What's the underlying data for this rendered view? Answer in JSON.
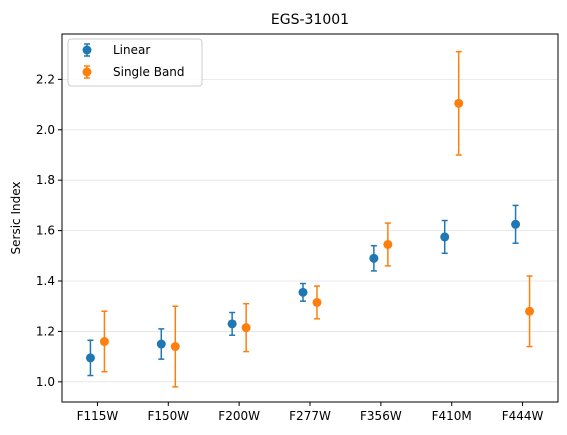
{
  "chart_data": {
    "type": "scatter",
    "title": "EGS-31001",
    "xlabel": "",
    "ylabel": "Sersic Index",
    "categories": [
      "F115W",
      "F150W",
      "F200W",
      "F277W",
      "F356W",
      "F410M",
      "F444W"
    ],
    "ylim": [
      0.92,
      2.38
    ],
    "yticks": [
      1.0,
      1.2,
      1.4,
      1.6,
      1.8,
      2.0,
      2.2
    ],
    "grid": "horizontal",
    "legend_position": "top-left",
    "series": [
      {
        "name": "Linear",
        "color": "#1f77b4",
        "values": [
          1.095,
          1.15,
          1.23,
          1.355,
          1.49,
          1.575,
          1.625
        ],
        "err_low": [
          0.07,
          0.06,
          0.045,
          0.035,
          0.05,
          0.065,
          0.075
        ],
        "err_high": [
          0.07,
          0.06,
          0.045,
          0.035,
          0.05,
          0.065,
          0.075
        ]
      },
      {
        "name": "Single Band",
        "color": "#ff7f0e",
        "values": [
          1.16,
          1.14,
          1.215,
          1.315,
          1.545,
          2.105,
          1.28
        ],
        "err_low": [
          0.12,
          0.16,
          0.095,
          0.065,
          0.085,
          0.205,
          0.14
        ],
        "err_high": [
          0.12,
          0.16,
          0.095,
          0.065,
          0.085,
          0.205,
          0.14
        ]
      }
    ]
  }
}
